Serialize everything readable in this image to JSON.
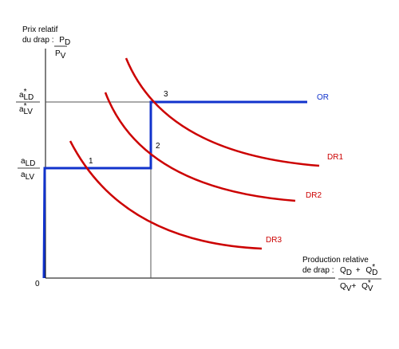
{
  "y_axis": {
    "title_line1": "Prix relatif",
    "title_line2": "du drap :",
    "num": "P",
    "num_sub": "D",
    "den": "P",
    "den_sub": "V"
  },
  "x_axis": {
    "title_line1": "Production relative",
    "title_line2": "de drap :",
    "num_a": "Q",
    "num_a_sub": "D",
    "plus": "+",
    "num_b": "Q",
    "num_b_star": "*",
    "num_b_sub": "D",
    "den_a": "Q",
    "den_a_sub": "V",
    "den_b": "Q",
    "den_b_star": "*",
    "den_b_sub": "V"
  },
  "origin": "0",
  "ratio_star": {
    "num": "a",
    "num_star": "*",
    "num_sub": "LD",
    "den": "a",
    "den_star": "*",
    "den_sub": "LV"
  },
  "ratio_home": {
    "num": "a",
    "num_sub": "LD",
    "den": "a",
    "den_sub": "LV"
  },
  "curves": {
    "supply": "OR",
    "demand": [
      "DR1",
      "DR2",
      "DR3"
    ]
  },
  "points": [
    "1",
    "2",
    "3"
  ],
  "colors": {
    "axes": "#000000",
    "guides": "#555555",
    "supply": "#1133cc",
    "demand": "#cc0000"
  }
}
